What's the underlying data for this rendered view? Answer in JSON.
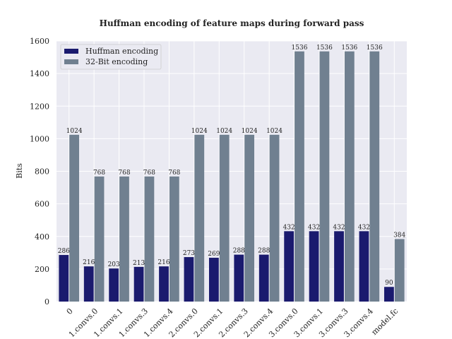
{
  "chart_data": {
    "type": "bar",
    "title": "Huffman encoding of feature maps during forward pass",
    "xlabel": "",
    "ylabel": "Bits",
    "ylim": [
      0,
      1600
    ],
    "yticks": [
      0,
      200,
      400,
      600,
      800,
      1000,
      1200,
      1400,
      1600
    ],
    "grid": true,
    "legend_position": "top-left",
    "categories": [
      "0",
      "1.convs.0",
      "1.convs.1",
      "1.convs.3",
      "1.convs.4",
      "2.convs.0",
      "2.convs.1",
      "2.convs.3",
      "2.convs.4",
      "3.convs.0",
      "3.convs.1",
      "3.convs.3",
      "3.convs.4",
      "model.fc"
    ],
    "series": [
      {
        "name": "Huffman encoding",
        "color": "#1a1a6e",
        "values": [
          286,
          216,
          203,
          213,
          216,
          273,
          269,
          288,
          288,
          432,
          432,
          432,
          432,
          90
        ]
      },
      {
        "name": "32-Bit encoding",
        "color": "#708090",
        "values": [
          1024,
          768,
          768,
          768,
          768,
          1024,
          1024,
          1024,
          1024,
          1536,
          1536,
          1536,
          1536,
          384
        ]
      }
    ]
  }
}
